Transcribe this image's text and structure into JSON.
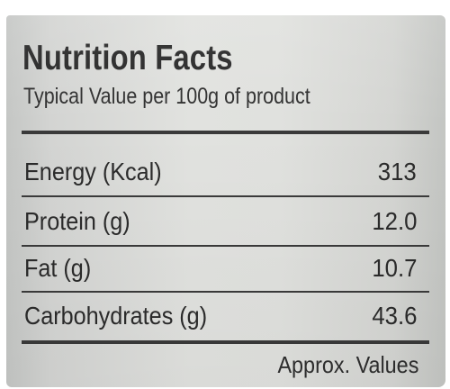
{
  "panel": {
    "title": "Nutrition Facts",
    "subtitle": "Typical Value per 100g of product",
    "rows": [
      {
        "label": "Energy (Kcal)",
        "value": "313"
      },
      {
        "label": "Protein (g)",
        "value": "12.0"
      },
      {
        "label": "Fat (g)",
        "value": "10.7"
      },
      {
        "label": "Carbohydrates (g)",
        "value": "43.6"
      }
    ],
    "footer": "Approx. Values"
  },
  "colors": {
    "text": "#2b2b2b",
    "rule": "#3a3a3a",
    "label_background": "#e0e1de"
  }
}
